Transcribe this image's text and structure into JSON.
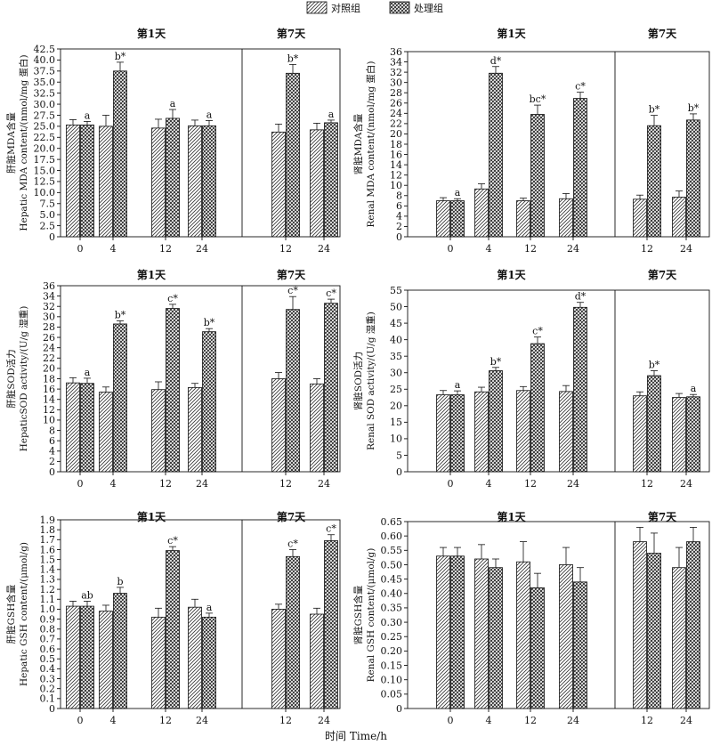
{
  "legend": {
    "items": [
      {
        "name": "对照组",
        "pattern": "diag"
      },
      {
        "name": "处理组",
        "pattern": "cross"
      }
    ]
  },
  "xlabel": "时间 Time/h",
  "chart_data": [
    {
      "type": "bar",
      "ylabel": [
        "肝脏MDA含量",
        "Hepatic MDA content/(nmol/mg 蛋白)"
      ],
      "ylim": [
        0,
        42.5
      ],
      "yticks": [
        "0",
        "2.5",
        "5.0",
        "7.5",
        "10.0",
        "12.5",
        "15.0",
        "17.5",
        "20.0",
        "22.5",
        "25.0",
        "27.5",
        "30.0",
        "32.5",
        "35.0",
        "37.5",
        "40.0",
        "42.5"
      ],
      "groups": [
        {
          "title": "第1天",
          "categories": [
            "0",
            "4",
            "12",
            "24"
          ],
          "series": [
            {
              "name": "对照组",
              "values": [
                25.3,
                25.0,
                24.6,
                25.1
              ],
              "err": [
                1.2,
                2.5,
                2.0,
                1.3
              ],
              "labels": [
                "",
                "",
                "",
                ""
              ]
            },
            {
              "name": "处理组",
              "values": [
                25.3,
                37.5,
                26.8,
                25.1
              ],
              "err": [
                0.8,
                2.0,
                2.0,
                1.2
              ],
              "labels": [
                "a",
                "b*",
                "a",
                "a"
              ]
            }
          ]
        },
        {
          "title": "第7天",
          "categories": [
            "12",
            "24"
          ],
          "series": [
            {
              "name": "对照组",
              "values": [
                23.7,
                24.2
              ],
              "err": [
                1.8,
                1.5
              ],
              "labels": [
                "",
                ""
              ]
            },
            {
              "name": "处理组",
              "values": [
                37.0,
                25.8
              ],
              "err": [
                2.0,
                0.6
              ],
              "labels": [
                "b*",
                "a"
              ]
            }
          ]
        }
      ]
    },
    {
      "type": "bar",
      "ylabel": [
        "肾脏MDA含量",
        "Renal MDA content/(nmol/mg 蛋白)"
      ],
      "ylim": [
        0,
        36
      ],
      "yticks": [
        "0",
        "2",
        "4",
        "6",
        "8",
        "10",
        "12",
        "14",
        "16",
        "18",
        "20",
        "22",
        "24",
        "26",
        "28",
        "30",
        "32",
        "34",
        "36"
      ],
      "groups": [
        {
          "title": "第1天",
          "categories": [
            "0",
            "4",
            "12",
            "24"
          ],
          "series": [
            {
              "name": "对照组",
              "values": [
                7.0,
                9.3,
                7.0,
                7.4
              ],
              "err": [
                0.6,
                1.0,
                0.5,
                1.0
              ],
              "labels": [
                "",
                "",
                "",
                ""
              ]
            },
            {
              "name": "处理组",
              "values": [
                7.0,
                31.8,
                23.8,
                26.9
              ],
              "err": [
                0.4,
                1.3,
                1.8,
                1.2
              ],
              "labels": [
                "a",
                "d*",
                "bc*",
                "c*"
              ]
            }
          ]
        },
        {
          "title": "第7天",
          "categories": [
            "12",
            "24"
          ],
          "series": [
            {
              "name": "对照组",
              "values": [
                7.3,
                7.7
              ],
              "err": [
                0.8,
                1.2
              ],
              "labels": [
                "",
                ""
              ]
            },
            {
              "name": "处理组",
              "values": [
                21.6,
                22.7
              ],
              "err": [
                2.0,
                1.2
              ],
              "labels": [
                "b*",
                "b*"
              ]
            }
          ]
        }
      ]
    },
    {
      "type": "bar",
      "ylabel": [
        "肝脏SOD活力",
        "HepaticSOD activity/(U/g 湿重)"
      ],
      "ylim": [
        0,
        36
      ],
      "yticks": [
        "0",
        "2",
        "4",
        "6",
        "8",
        "10",
        "12",
        "14",
        "16",
        "18",
        "20",
        "22",
        "24",
        "26",
        "28",
        "30",
        "32",
        "34",
        "36"
      ],
      "groups": [
        {
          "title": "第1天",
          "categories": [
            "0",
            "4",
            "12",
            "24"
          ],
          "series": [
            {
              "name": "对照组",
              "values": [
                17.2,
                15.4,
                15.9,
                16.3
              ],
              "err": [
                1.0,
                1.0,
                1.5,
                0.8
              ],
              "labels": [
                "",
                "",
                "",
                ""
              ]
            },
            {
              "name": "处理组",
              "values": [
                17.1,
                28.6,
                31.6,
                27.1
              ],
              "err": [
                1.0,
                0.6,
                0.8,
                0.6
              ],
              "labels": [
                "a",
                "b*",
                "c*",
                "b*"
              ]
            }
          ]
        },
        {
          "title": "第7天",
          "categories": [
            "12",
            "24"
          ],
          "series": [
            {
              "name": "对照组",
              "values": [
                18.0,
                17.0
              ],
              "err": [
                1.2,
                1.0
              ],
              "labels": [
                "",
                ""
              ]
            },
            {
              "name": "处理组",
              "values": [
                31.4,
                32.6
              ],
              "err": [
                2.5,
                0.8
              ],
              "labels": [
                "c*",
                "c*"
              ]
            }
          ]
        }
      ]
    },
    {
      "type": "bar",
      "ylabel": [
        "肾脏SOD活力",
        "Renal SOD activity/(U/g 湿重)"
      ],
      "ylim": [
        0,
        55
      ],
      "yticks": [
        "0",
        "5",
        "10",
        "15",
        "20",
        "25",
        "30",
        "35",
        "40",
        "45",
        "50",
        "55"
      ],
      "groups": [
        {
          "title": "第1天",
          "categories": [
            "0",
            "4",
            "12",
            "24"
          ],
          "series": [
            {
              "name": "对照组",
              "values": [
                23.3,
                24.2,
                24.6,
                24.3
              ],
              "err": [
                1.3,
                1.4,
                1.2,
                1.8
              ],
              "labels": [
                "",
                "",
                "",
                ""
              ]
            },
            {
              "name": "处理组",
              "values": [
                23.3,
                30.6,
                38.8,
                49.8
              ],
              "err": [
                1.2,
                1.0,
                2.0,
                1.5
              ],
              "labels": [
                "a",
                "b*",
                "c*",
                "d*"
              ]
            }
          ]
        },
        {
          "title": "第7天",
          "categories": [
            "12",
            "24"
          ],
          "series": [
            {
              "name": "对照组",
              "values": [
                23.0,
                22.5
              ],
              "err": [
                1.2,
                1.2
              ],
              "labels": [
                "",
                ""
              ]
            },
            {
              "name": "处理组",
              "values": [
                29.1,
                22.7
              ],
              "err": [
                1.5,
                0.7
              ],
              "labels": [
                "b*",
                "a"
              ]
            }
          ]
        }
      ]
    },
    {
      "type": "bar",
      "ylabel": [
        "肝脏GSH含量",
        "Hepatic GSH content/(μmol/g)"
      ],
      "ylim": [
        0,
        1.9
      ],
      "yticks": [
        "0",
        "0.1",
        "0.2",
        "0.3",
        "0.4",
        "0.5",
        "0.6",
        "0.7",
        "0.8",
        "0.9",
        "1.0",
        "1.1",
        "1.2",
        "1.3",
        "1.4",
        "1.5",
        "1.6",
        "1.7",
        "1.8",
        "1.9"
      ],
      "groups": [
        {
          "title": "第1天",
          "categories": [
            "0",
            "4",
            "12",
            "24"
          ],
          "series": [
            {
              "name": "对照组",
              "values": [
                1.03,
                0.98,
                0.92,
                1.02
              ],
              "err": [
                0.05,
                0.06,
                0.09,
                0.08
              ],
              "labels": [
                "",
                "",
                "",
                ""
              ]
            },
            {
              "name": "处理组",
              "values": [
                1.03,
                1.16,
                1.59,
                0.92
              ],
              "err": [
                0.05,
                0.06,
                0.04,
                0.04
              ],
              "labels": [
                "ab",
                "b",
                "c*",
                "a"
              ]
            }
          ]
        },
        {
          "title": "第7天",
          "categories": [
            "12",
            "24"
          ],
          "series": [
            {
              "name": "对照组",
              "values": [
                1.0,
                0.95
              ],
              "err": [
                0.05,
                0.06
              ],
              "labels": [
                "",
                ""
              ]
            },
            {
              "name": "处理组",
              "values": [
                1.53,
                1.69
              ],
              "err": [
                0.07,
                0.06
              ],
              "labels": [
                "c*",
                "c*"
              ]
            }
          ]
        }
      ]
    },
    {
      "type": "bar",
      "ylabel": [
        "肾脏GSH含量",
        "Renal GSH content/(μmol/g)"
      ],
      "ylim": [
        0,
        0.65
      ],
      "yticks": [
        "0",
        "0.05",
        "0.10",
        "0.15",
        "0.20",
        "0.25",
        "0.30",
        "0.35",
        "0.40",
        "0.45",
        "0.50",
        "0.55",
        "0.60",
        "0.65"
      ],
      "groups": [
        {
          "title": "第1天",
          "categories": [
            "0",
            "4",
            "12",
            "24"
          ],
          "series": [
            {
              "name": "对照组",
              "values": [
                0.53,
                0.52,
                0.51,
                0.5
              ],
              "err": [
                0.03,
                0.05,
                0.07,
                0.06
              ],
              "labels": [
                "",
                "",
                "",
                ""
              ]
            },
            {
              "name": "处理组",
              "values": [
                0.53,
                0.49,
                0.42,
                0.44
              ],
              "err": [
                0.03,
                0.03,
                0.05,
                0.05
              ],
              "labels": [
                "",
                "",
                "",
                ""
              ]
            }
          ]
        },
        {
          "title": "第7天",
          "categories": [
            "12",
            "24"
          ],
          "series": [
            {
              "name": "对照组",
              "values": [
                0.58,
                0.49
              ],
              "err": [
                0.05,
                0.07
              ],
              "labels": [
                "",
                ""
              ]
            },
            {
              "name": "处理组",
              "values": [
                0.54,
                0.58
              ],
              "err": [
                0.07,
                0.05
              ],
              "labels": [
                "",
                ""
              ]
            }
          ]
        }
      ]
    }
  ]
}
